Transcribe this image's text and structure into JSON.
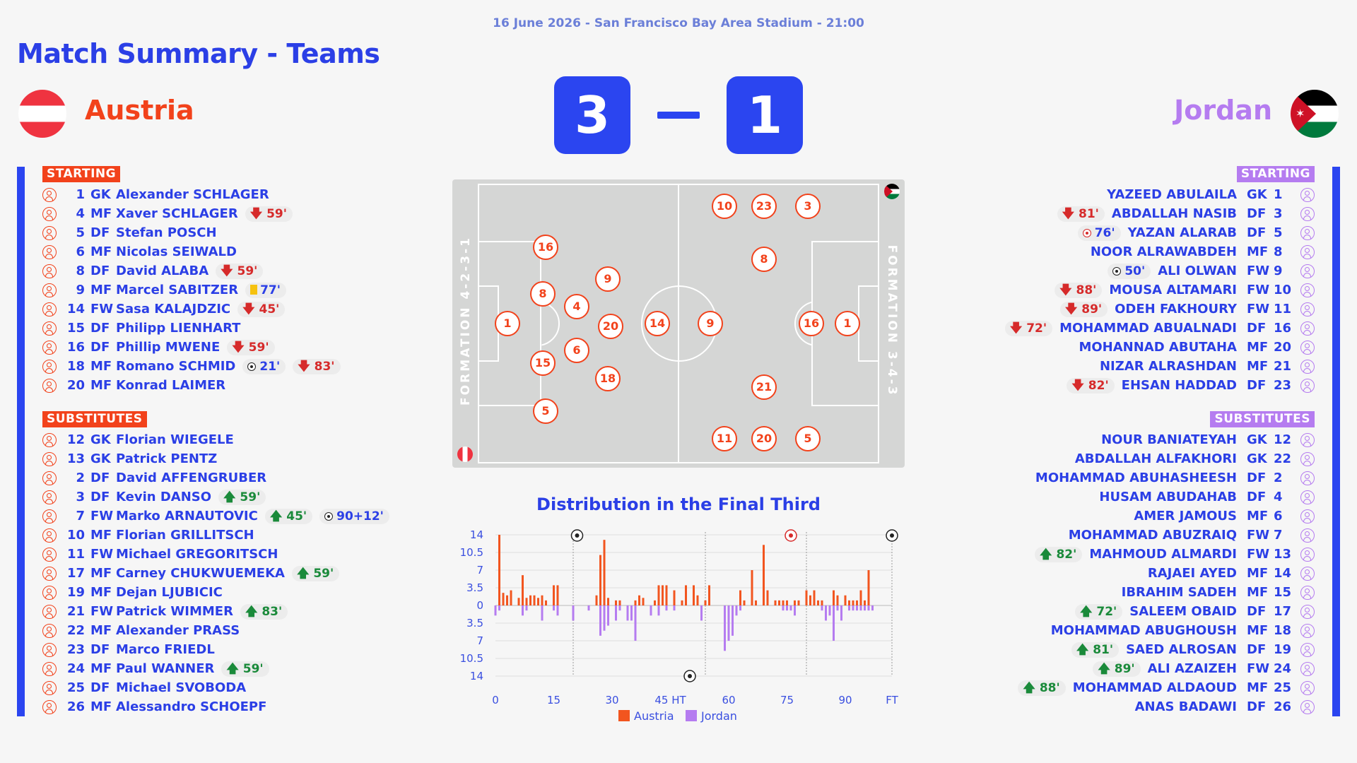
{
  "venue": "16 June 2026 - San Francisco Bay Area Stadium - 21:00",
  "title": "Match Summary - Teams",
  "home": {
    "name": "Austria",
    "score": "3",
    "color": "#f2421b",
    "starting_label": "STARTING",
    "subs_label": "SUBSTITUTES",
    "formation": "FORMATION 4-2-3-1",
    "starting": [
      {
        "num": "1",
        "pos": "GK",
        "name": "Alexander SCHLAGER",
        "events": []
      },
      {
        "num": "4",
        "pos": "MF",
        "name": "Xaver SCHLAGER",
        "events": [
          {
            "type": "off",
            "icon": "arrow-down-icon",
            "text": "🡇 59'"
          }
        ]
      },
      {
        "num": "5",
        "pos": "DF",
        "name": "Stefan POSCH",
        "events": []
      },
      {
        "num": "6",
        "pos": "MF",
        "name": "Nicolas SEIWALD",
        "events": []
      },
      {
        "num": "8",
        "pos": "DF",
        "name": "David ALABA",
        "events": [
          {
            "type": "off",
            "icon": "arrow-down-icon",
            "text": "🡇 59'"
          }
        ]
      },
      {
        "num": "9",
        "pos": "MF",
        "name": "Marcel SABITZER",
        "events": [
          {
            "type": "yellow",
            "icon": "yellow-card-icon",
            "text": "77'"
          }
        ]
      },
      {
        "num": "14",
        "pos": "FW",
        "name": "Sasa KALAJDZIC",
        "events": [
          {
            "type": "off",
            "icon": "arrow-down-icon",
            "text": "🡇 45'"
          }
        ]
      },
      {
        "num": "15",
        "pos": "DF",
        "name": "Philipp LIENHART",
        "events": []
      },
      {
        "num": "16",
        "pos": "DF",
        "name": "Phillip MWENE",
        "events": [
          {
            "type": "off",
            "icon": "arrow-down-icon",
            "text": "🡇 59'"
          }
        ]
      },
      {
        "num": "18",
        "pos": "MF",
        "name": "Romano SCHMID",
        "events": [
          {
            "type": "goal",
            "icon": "ball-icon",
            "text": "21'"
          },
          {
            "type": "off",
            "icon": "arrow-down-icon",
            "text": "🡇 83'"
          }
        ]
      },
      {
        "num": "20",
        "pos": "MF",
        "name": "Konrad LAIMER",
        "events": []
      }
    ],
    "subs": [
      {
        "num": "12",
        "pos": "GK",
        "name": "Florian WIEGELE",
        "events": []
      },
      {
        "num": "13",
        "pos": "GK",
        "name": "Patrick PENTZ",
        "events": []
      },
      {
        "num": "2",
        "pos": "DF",
        "name": "David AFFENGRUBER",
        "events": []
      },
      {
        "num": "3",
        "pos": "DF",
        "name": "Kevin DANSO",
        "events": [
          {
            "type": "on",
            "icon": "arrow-up-icon",
            "text": "🡅 59'"
          }
        ]
      },
      {
        "num": "7",
        "pos": "FW",
        "name": "Marko ARNAUTOVIC",
        "events": [
          {
            "type": "on",
            "icon": "arrow-up-icon",
            "text": "🡅 45'"
          },
          {
            "type": "goal",
            "icon": "ball-icon",
            "text": "90+12'"
          }
        ]
      },
      {
        "num": "10",
        "pos": "MF",
        "name": "Florian GRILLITSCH",
        "events": []
      },
      {
        "num": "11",
        "pos": "FW",
        "name": "Michael GREGORITSCH",
        "events": []
      },
      {
        "num": "17",
        "pos": "MF",
        "name": "Carney CHUKWUEMEKA",
        "events": [
          {
            "type": "on",
            "icon": "arrow-up-icon",
            "text": "🡅 59'"
          }
        ]
      },
      {
        "num": "19",
        "pos": "MF",
        "name": "Dejan LJUBICIC",
        "events": []
      },
      {
        "num": "21",
        "pos": "FW",
        "name": "Patrick WIMMER",
        "events": [
          {
            "type": "on",
            "icon": "arrow-up-icon",
            "text": "🡅 83'"
          }
        ]
      },
      {
        "num": "22",
        "pos": "MF",
        "name": "Alexander PRASS",
        "events": []
      },
      {
        "num": "23",
        "pos": "DF",
        "name": "Marco FRIEDL",
        "events": []
      },
      {
        "num": "24",
        "pos": "MF",
        "name": "Paul WANNER",
        "events": [
          {
            "type": "on",
            "icon": "arrow-up-icon",
            "text": "🡅 59'"
          }
        ]
      },
      {
        "num": "25",
        "pos": "DF",
        "name": "Michael SVOBODA",
        "events": []
      },
      {
        "num": "26",
        "pos": "MF",
        "name": "Alessandro SCHOEPF",
        "events": []
      }
    ],
    "pitch_numbers": [
      "1",
      "16",
      "8",
      "4",
      "9",
      "15",
      "6",
      "20",
      "18",
      "5",
      "14"
    ]
  },
  "away": {
    "name": "Jordan",
    "score": "1",
    "color": "#b57cf0",
    "starting_label": "STARTING",
    "subs_label": "SUBSTITUTES",
    "formation": "FORMATION 3-4-3",
    "starting": [
      {
        "num": "1",
        "pos": "GK",
        "name": "YAZEED ABULAILA",
        "events": []
      },
      {
        "num": "3",
        "pos": "DF",
        "name": "ABDALLAH NASIB",
        "events": [
          {
            "type": "off",
            "icon": "arrow-down-icon",
            "text": "🡇 81'"
          }
        ]
      },
      {
        "num": "5",
        "pos": "DF",
        "name": "YAZAN ALARAB",
        "events": [
          {
            "type": "owngoal",
            "icon": "own-goal-ball-icon",
            "text": "76'"
          }
        ]
      },
      {
        "num": "8",
        "pos": "MF",
        "name": "NOOR ALRAWABDEH",
        "events": []
      },
      {
        "num": "9",
        "pos": "FW",
        "name": "ALI OLWAN",
        "events": [
          {
            "type": "goal",
            "icon": "ball-icon",
            "text": "50'"
          }
        ]
      },
      {
        "num": "10",
        "pos": "FW",
        "name": "MOUSA ALTAMARI",
        "events": [
          {
            "type": "off",
            "icon": "arrow-down-icon",
            "text": "🡇 88'"
          }
        ]
      },
      {
        "num": "11",
        "pos": "FW",
        "name": "ODEH FAKHOURY",
        "events": [
          {
            "type": "off",
            "icon": "arrow-down-icon",
            "text": "🡇 89'"
          }
        ]
      },
      {
        "num": "16",
        "pos": "DF",
        "name": "MOHAMMAD ABUALNADI",
        "events": [
          {
            "type": "off",
            "icon": "arrow-down-icon",
            "text": "🡇 72'"
          }
        ]
      },
      {
        "num": "20",
        "pos": "MF",
        "name": "MOHANNAD ABUTAHA",
        "events": []
      },
      {
        "num": "21",
        "pos": "MF",
        "name": "NIZAR ALRASHDAN",
        "events": []
      },
      {
        "num": "23",
        "pos": "DF",
        "name": "EHSAN HADDAD",
        "events": [
          {
            "type": "off",
            "icon": "arrow-down-icon",
            "text": "🡇 82'"
          }
        ]
      }
    ],
    "subs": [
      {
        "num": "12",
        "pos": "GK",
        "name": "NOUR BANIATEYAH",
        "events": []
      },
      {
        "num": "22",
        "pos": "GK",
        "name": "ABDALLAH ALFAKHORI",
        "events": []
      },
      {
        "num": "2",
        "pos": "DF",
        "name": "MOHAMMAD ABUHASHEESH",
        "events": []
      },
      {
        "num": "4",
        "pos": "DF",
        "name": "HUSAM ABUDAHAB",
        "events": []
      },
      {
        "num": "6",
        "pos": "MF",
        "name": "AMER JAMOUS",
        "events": []
      },
      {
        "num": "7",
        "pos": "FW",
        "name": "MOHAMMAD ABUZRAIQ",
        "events": []
      },
      {
        "num": "13",
        "pos": "FW",
        "name": "MAHMOUD ALMARDI",
        "events": [
          {
            "type": "on",
            "icon": "arrow-up-icon",
            "text": "🡅 82'"
          }
        ]
      },
      {
        "num": "14",
        "pos": "MF",
        "name": "RAJAEI AYED",
        "events": []
      },
      {
        "num": "15",
        "pos": "MF",
        "name": "IBRAHIM SADEH",
        "events": []
      },
      {
        "num": "17",
        "pos": "DF",
        "name": "SALEEM OBAID",
        "events": [
          {
            "type": "on",
            "icon": "arrow-up-icon",
            "text": "🡅 72'"
          }
        ]
      },
      {
        "num": "18",
        "pos": "MF",
        "name": "MOHAMMAD ABUGHOUSH",
        "events": []
      },
      {
        "num": "19",
        "pos": "DF",
        "name": "SAED ALROSAN",
        "events": [
          {
            "type": "on",
            "icon": "arrow-up-icon",
            "text": "🡅 81'"
          }
        ]
      },
      {
        "num": "24",
        "pos": "FW",
        "name": "ALI AZAIZEH",
        "events": [
          {
            "type": "on",
            "icon": "arrow-up-icon",
            "text": "🡅 89'"
          }
        ]
      },
      {
        "num": "25",
        "pos": "MF",
        "name": "MOHAMMAD ALDAOUD",
        "events": [
          {
            "type": "on",
            "icon": "arrow-up-icon",
            "text": "🡅 88'"
          }
        ]
      },
      {
        "num": "26",
        "pos": "DF",
        "name": "ANAS BADAWI",
        "events": []
      }
    ],
    "pitch_numbers": [
      "10",
      "23",
      "3",
      "8",
      "16",
      "1",
      "9",
      "21",
      "11",
      "20",
      "5"
    ]
  },
  "chart_data": {
    "type": "bar",
    "title": "Distribution in the Final Third",
    "x_ticks": [
      "0",
      "15",
      "30",
      "45 HT",
      "60",
      "75",
      "90",
      "FT"
    ],
    "y_ticks": [
      "14",
      "10.5",
      "7",
      "3.5",
      "0",
      "3.5",
      "7",
      "10.5",
      "14"
    ],
    "ylim": [
      -14,
      14
    ],
    "legend": [
      "Austria",
      "Jordan"
    ],
    "series": [
      {
        "name": "Austria",
        "color": "#f2551f",
        "x": [
          1,
          2,
          3,
          4,
          6,
          7,
          8,
          9,
          10,
          11,
          12,
          13,
          15,
          16,
          26,
          27,
          28,
          29,
          31,
          32,
          36,
          37,
          38,
          41,
          42,
          43,
          44,
          46,
          48,
          49,
          51,
          52,
          54,
          55,
          63,
          64,
          66,
          67,
          69,
          70,
          72,
          73,
          74,
          75,
          77,
          78,
          80,
          81,
          82,
          83,
          84,
          87,
          88,
          90,
          91,
          92,
          93,
          94,
          95,
          96
        ],
        "values": [
          14,
          2.5,
          2,
          3,
          1.5,
          6,
          1.5,
          2,
          2,
          1.5,
          2,
          1,
          4,
          4,
          2,
          10,
          13,
          1.5,
          1,
          1,
          1,
          2,
          1.5,
          1,
          4,
          4,
          4,
          3,
          1,
          4,
          4,
          2,
          1,
          4,
          3,
          1,
          7,
          1,
          12,
          3,
          1,
          1,
          1,
          1,
          1,
          1,
          3,
          2,
          3,
          1,
          1,
          3,
          2,
          2,
          1,
          1,
          1,
          3,
          1,
          7
        ]
      },
      {
        "name": "Jordan",
        "color": "#b57cf0",
        "x": [
          0,
          1,
          7,
          8,
          12,
          15,
          16,
          20,
          24,
          27,
          28,
          29,
          31,
          32,
          34,
          35,
          36,
          40,
          42,
          44,
          46,
          53,
          59,
          60,
          61,
          62,
          63,
          74,
          75,
          76,
          77,
          84,
          85,
          86,
          87,
          88,
          89,
          91,
          92,
          93,
          94,
          95,
          96,
          97
        ],
        "values": [
          -2,
          -1,
          -2,
          -1,
          -3,
          -1,
          -2,
          -3,
          -1,
          -6,
          -5,
          -4,
          -3,
          -1,
          -3,
          -3,
          -7,
          -2,
          -2,
          -1,
          -1,
          -3,
          -9,
          -7,
          -6,
          -2,
          -1,
          -1,
          -1,
          -1,
          -2,
          -1,
          -3,
          -2,
          -7,
          -1,
          -3,
          -1,
          -1,
          -1,
          -1,
          -1,
          -1,
          -1
        ]
      }
    ],
    "goals": [
      {
        "team": "Austria",
        "minute": 21,
        "icon": "ball-icon"
      },
      {
        "team": "Jordan",
        "minute": 50,
        "icon": "ball-icon"
      },
      {
        "team": "Austria",
        "minute": 76,
        "icon": "own-goal-ball-icon"
      },
      {
        "team": "Austria",
        "minute": 102,
        "icon": "ball-icon"
      }
    ],
    "grid": true
  }
}
